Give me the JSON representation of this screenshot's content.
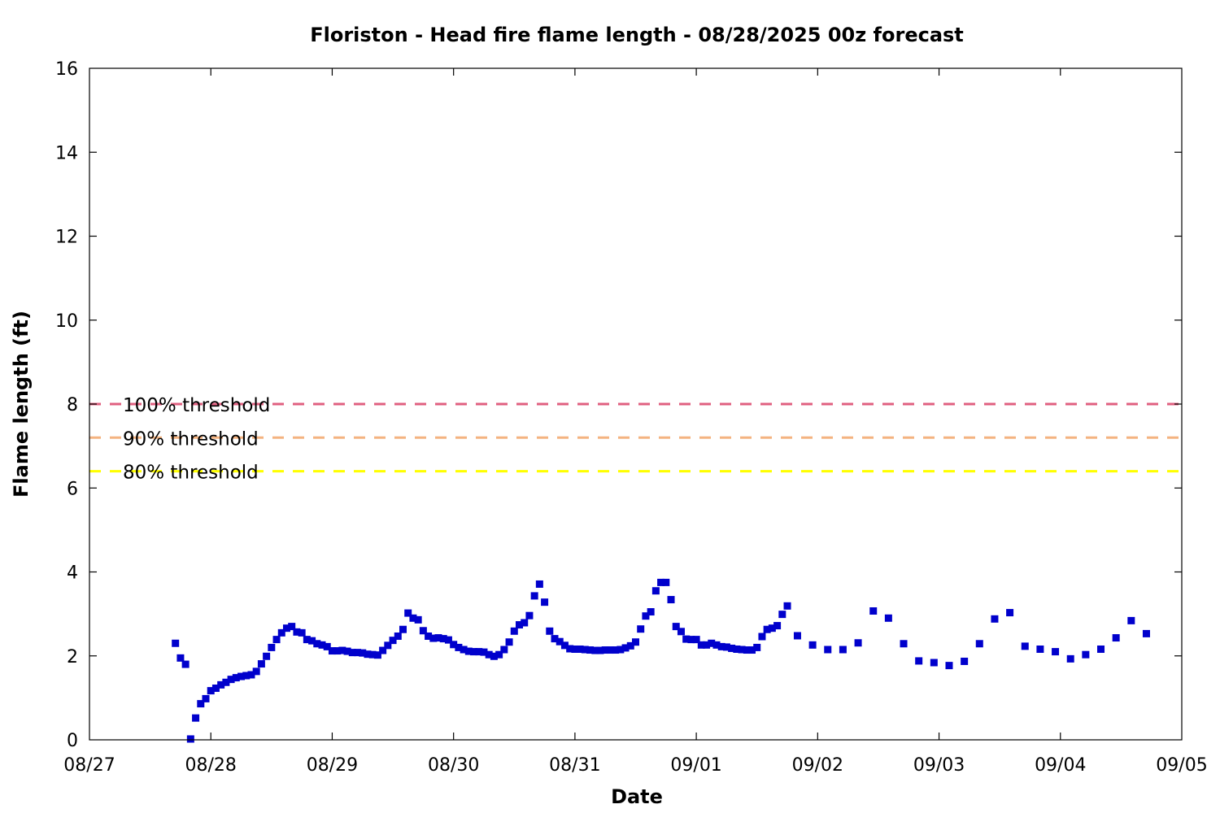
{
  "chart_data": {
    "type": "scatter",
    "title": "Floriston - Head fire flame length - 08/28/2025 00z forecast",
    "xlabel": "Date",
    "ylabel": "Flame length (ft)",
    "xlim": [
      "08/27",
      "09/05"
    ],
    "x_ticks": [
      "08/27",
      "08/28",
      "08/29",
      "08/30",
      "08/31",
      "09/01",
      "09/02",
      "09/03",
      "09/04",
      "09/05"
    ],
    "ylim": [
      0,
      16
    ],
    "y_ticks": [
      "0",
      "2",
      "4",
      "6",
      "8",
      "10",
      "12",
      "14",
      "16"
    ],
    "grid": false,
    "marker_color": "#0000cc",
    "thresholds": [
      {
        "label": "100% threshold",
        "value": 8.0,
        "color": "#e06080"
      },
      {
        "label": "90% threshold",
        "value": 7.2,
        "color": "#f4b380"
      },
      {
        "label": "80% threshold",
        "value": 6.4,
        "color": "#ffff00"
      }
    ],
    "series": [
      {
        "points": [
          [
            "08/27 17:00",
            2.3
          ],
          [
            "08/27 18:00",
            1.95
          ],
          [
            "08/27 19:00",
            1.8
          ],
          [
            "08/27 20:00",
            0.02
          ],
          [
            "08/27 21:00",
            0.52
          ],
          [
            "08/27 22:00",
            0.86
          ],
          [
            "08/27 23:00",
            0.98
          ],
          [
            "08/28 00:00",
            1.17
          ],
          [
            "08/28 01:00",
            1.23
          ],
          [
            "08/28 02:00",
            1.31
          ],
          [
            "08/28 03:00",
            1.37
          ],
          [
            "08/28 04:00",
            1.44
          ],
          [
            "08/28 05:00",
            1.48
          ],
          [
            "08/28 06:00",
            1.51
          ],
          [
            "08/28 07:00",
            1.53
          ],
          [
            "08/28 08:00",
            1.55
          ],
          [
            "08/28 09:00",
            1.63
          ],
          [
            "08/28 10:00",
            1.81
          ],
          [
            "08/28 11:00",
            1.99
          ],
          [
            "08/28 12:00",
            2.2
          ],
          [
            "08/28 13:00",
            2.39
          ],
          [
            "08/28 14:00",
            2.55
          ],
          [
            "08/28 15:00",
            2.66
          ],
          [
            "08/28 16:00",
            2.7
          ],
          [
            "08/28 17:00",
            2.57
          ],
          [
            "08/28 18:00",
            2.55
          ],
          [
            "08/28 19:00",
            2.39
          ],
          [
            "08/28 20:00",
            2.36
          ],
          [
            "08/28 21:00",
            2.29
          ],
          [
            "08/28 22:00",
            2.26
          ],
          [
            "08/28 23:00",
            2.22
          ],
          [
            "08/29 00:00",
            2.12
          ],
          [
            "08/29 01:00",
            2.12
          ],
          [
            "08/29 02:00",
            2.13
          ],
          [
            "08/29 03:00",
            2.11
          ],
          [
            "08/29 04:00",
            2.08
          ],
          [
            "08/29 05:00",
            2.08
          ],
          [
            "08/29 06:00",
            2.07
          ],
          [
            "08/29 07:00",
            2.04
          ],
          [
            "08/29 08:00",
            2.03
          ],
          [
            "08/29 09:00",
            2.02
          ],
          [
            "08/29 10:00",
            2.13
          ],
          [
            "08/29 11:00",
            2.25
          ],
          [
            "08/29 12:00",
            2.37
          ],
          [
            "08/29 13:00",
            2.47
          ],
          [
            "08/29 14:00",
            2.63
          ],
          [
            "08/29 15:00",
            3.02
          ],
          [
            "08/29 16:00",
            2.9
          ],
          [
            "08/29 17:00",
            2.86
          ],
          [
            "08/29 18:00",
            2.6
          ],
          [
            "08/29 19:00",
            2.47
          ],
          [
            "08/29 20:00",
            2.42
          ],
          [
            "08/29 21:00",
            2.43
          ],
          [
            "08/29 22:00",
            2.41
          ],
          [
            "08/29 23:00",
            2.38
          ],
          [
            "08/30 00:00",
            2.27
          ],
          [
            "08/30 01:00",
            2.2
          ],
          [
            "08/30 02:00",
            2.15
          ],
          [
            "08/30 03:00",
            2.11
          ],
          [
            "08/30 04:00",
            2.1
          ],
          [
            "08/30 05:00",
            2.1
          ],
          [
            "08/30 06:00",
            2.09
          ],
          [
            "08/30 07:00",
            2.03
          ],
          [
            "08/30 08:00",
            1.99
          ],
          [
            "08/30 09:00",
            2.03
          ],
          [
            "08/30 10:00",
            2.15
          ],
          [
            "08/30 11:00",
            2.33
          ],
          [
            "08/30 12:00",
            2.59
          ],
          [
            "08/30 13:00",
            2.74
          ],
          [
            "08/30 14:00",
            2.79
          ],
          [
            "08/30 15:00",
            2.96
          ],
          [
            "08/30 16:00",
            3.43
          ],
          [
            "08/30 17:00",
            3.71
          ],
          [
            "08/30 18:00",
            3.28
          ],
          [
            "08/30 19:00",
            2.59
          ],
          [
            "08/30 20:00",
            2.41
          ],
          [
            "08/30 21:00",
            2.34
          ],
          [
            "08/30 22:00",
            2.25
          ],
          [
            "08/30 23:00",
            2.17
          ],
          [
            "08/31 00:00",
            2.16
          ],
          [
            "08/31 01:00",
            2.16
          ],
          [
            "08/31 02:00",
            2.15
          ],
          [
            "08/31 03:00",
            2.14
          ],
          [
            "08/31 04:00",
            2.13
          ],
          [
            "08/31 05:00",
            2.13
          ],
          [
            "08/31 06:00",
            2.14
          ],
          [
            "08/31 07:00",
            2.14
          ],
          [
            "08/31 08:00",
            2.14
          ],
          [
            "08/31 09:00",
            2.15
          ],
          [
            "08/31 10:00",
            2.19
          ],
          [
            "08/31 11:00",
            2.24
          ],
          [
            "08/31 12:00",
            2.33
          ],
          [
            "08/31 13:00",
            2.64
          ],
          [
            "08/31 14:00",
            2.95
          ],
          [
            "08/31 15:00",
            3.05
          ],
          [
            "08/31 16:00",
            3.55
          ],
          [
            "08/31 17:00",
            3.75
          ],
          [
            "08/31 18:00",
            3.75
          ],
          [
            "08/31 19:00",
            3.34
          ],
          [
            "08/31 20:00",
            2.7
          ],
          [
            "08/31 21:00",
            2.58
          ],
          [
            "08/31 22:00",
            2.4
          ],
          [
            "08/31 23:00",
            2.39
          ],
          [
            "09/01 00:00",
            2.39
          ],
          [
            "09/01 01:00",
            2.26
          ],
          [
            "09/01 02:00",
            2.26
          ],
          [
            "09/01 03:00",
            2.3
          ],
          [
            "09/01 04:00",
            2.26
          ],
          [
            "09/01 05:00",
            2.22
          ],
          [
            "09/01 06:00",
            2.21
          ],
          [
            "09/01 07:00",
            2.18
          ],
          [
            "09/01 08:00",
            2.16
          ],
          [
            "09/01 09:00",
            2.15
          ],
          [
            "09/01 10:00",
            2.14
          ],
          [
            "09/01 11:00",
            2.14
          ],
          [
            "09/01 12:00",
            2.2
          ],
          [
            "09/01 13:00",
            2.46
          ],
          [
            "09/01 14:00",
            2.63
          ],
          [
            "09/01 15:00",
            2.66
          ],
          [
            "09/01 16:00",
            2.72
          ],
          [
            "09/01 17:00",
            2.99
          ],
          [
            "09/01 18:00",
            3.19
          ],
          [
            "09/01 20:00",
            2.48
          ],
          [
            "09/01 23:00",
            2.26
          ],
          [
            "09/02 02:00",
            2.15
          ],
          [
            "09/02 05:00",
            2.15
          ],
          [
            "09/02 08:00",
            2.31
          ],
          [
            "09/02 11:00",
            3.07
          ],
          [
            "09/02 14:00",
            2.9
          ],
          [
            "09/02 17:00",
            2.29
          ],
          [
            "09/02 20:00",
            1.88
          ],
          [
            "09/02 23:00",
            1.84
          ],
          [
            "09/03 02:00",
            1.77
          ],
          [
            "09/03 05:00",
            1.87
          ],
          [
            "09/03 08:00",
            2.29
          ],
          [
            "09/03 11:00",
            2.88
          ],
          [
            "09/03 14:00",
            3.03
          ],
          [
            "09/03 17:00",
            2.23
          ],
          [
            "09/03 20:00",
            2.16
          ],
          [
            "09/03 23:00",
            2.1
          ],
          [
            "09/04 02:00",
            1.93
          ],
          [
            "09/04 05:00",
            2.03
          ],
          [
            "09/04 08:00",
            2.16
          ],
          [
            "09/04 11:00",
            2.43
          ],
          [
            "09/04 14:00",
            2.84
          ],
          [
            "09/04 17:00",
            2.53
          ]
        ]
      }
    ]
  }
}
